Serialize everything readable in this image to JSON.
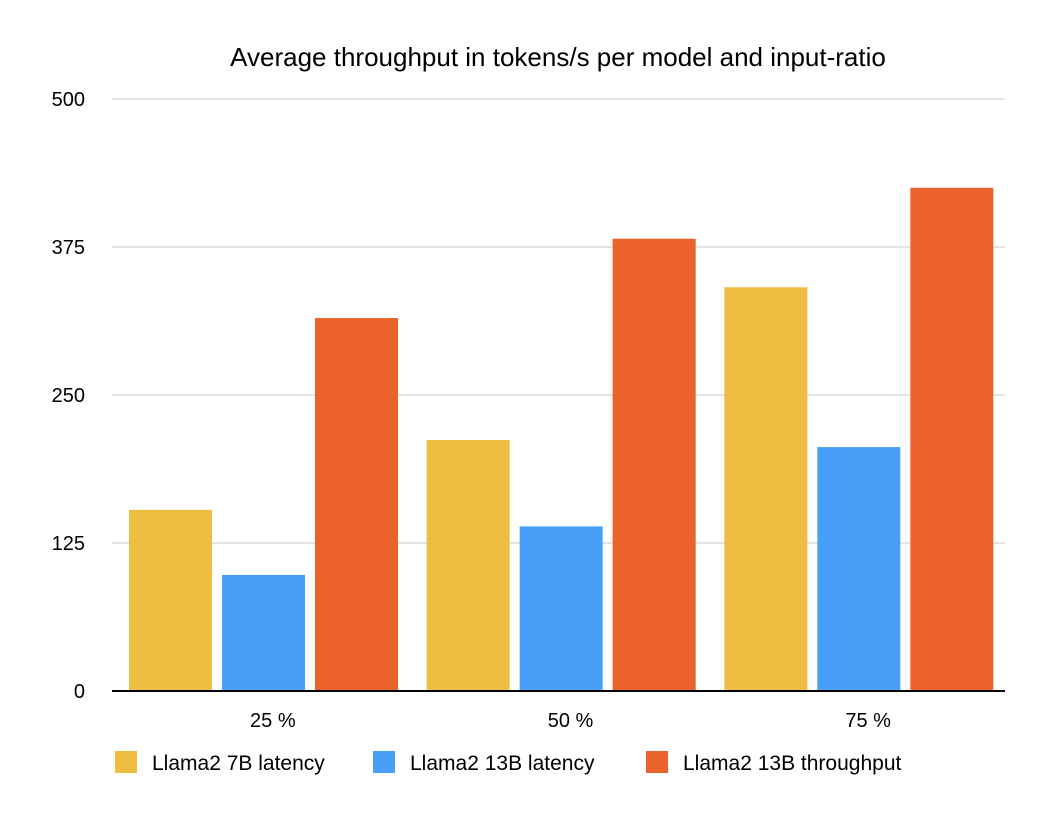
{
  "chart_data": {
    "type": "bar",
    "title": "Average throughput in tokens/s per model and input-ratio",
    "xlabel": "",
    "ylabel": "",
    "categories": [
      "25 %",
      "50 %",
      "75 %"
    ],
    "yticks": [
      "0",
      "125",
      "250",
      "375",
      "500"
    ],
    "ylim": [
      0,
      500
    ],
    "grid": true,
    "legend_position": "bottom",
    "series": [
      {
        "name": "Llama2 7B latency",
        "color": "#EFBD41",
        "values": [
          153,
          212,
          341
        ]
      },
      {
        "name": "Llama2 13B latency",
        "color": "#479FF8",
        "values": [
          98,
          139,
          206
        ]
      },
      {
        "name": "Llama2 13B throughput",
        "color": "#EB622D",
        "values": [
          315,
          382,
          425
        ]
      }
    ]
  }
}
